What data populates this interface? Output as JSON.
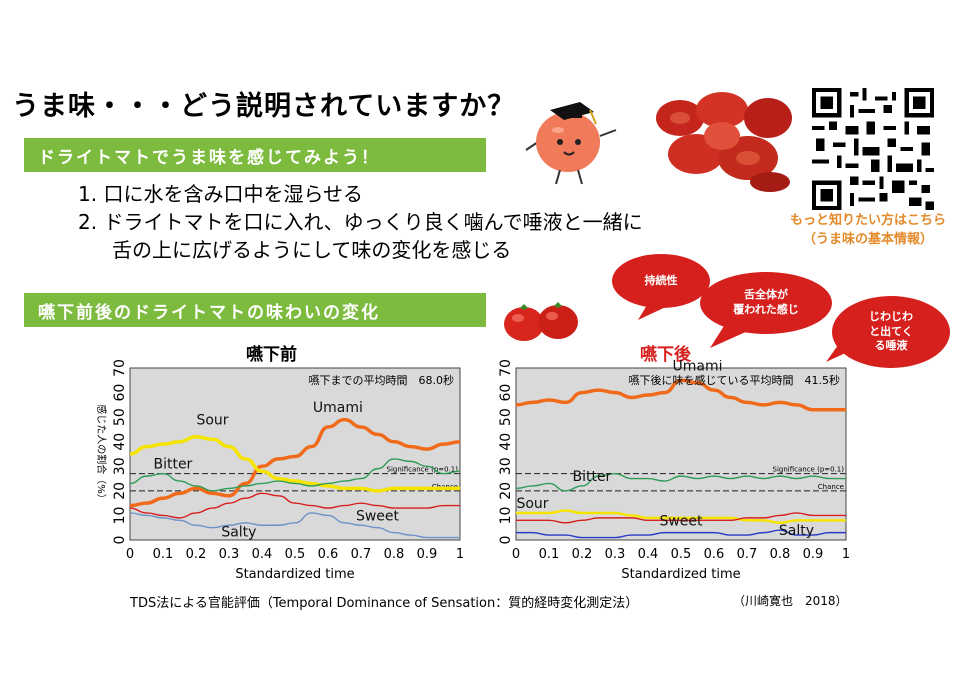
{
  "title": "うま味・・・どう説明されていますか？",
  "section1": {
    "heading": "ドライトマトでうま味を感じてみよう！",
    "step1": "1. 口に水を含み口中を湿らせる",
    "step2_line1": "2. ドライトマトを口に入れ、ゆっくり良く噛んで唾液と一緒に",
    "step2_line2": "舌の上に広げるようにして味の変化を感じる"
  },
  "qr": {
    "caption_line1": "もっと知りたい方はこちら",
    "caption_line2": "（うま味の基本情報）"
  },
  "section2": {
    "heading": "嚥下前後のドライトマトの味わいの変化"
  },
  "bubbles": {
    "b1": "持続性",
    "b2_line1": "舌全体が",
    "b2_line2": "覆われた感じ",
    "b3_line1": "じわじわ",
    "b3_line2": "と出てく",
    "b3_line3": "る唾液"
  },
  "colors": {
    "accent_green": "#7dbb3e",
    "bubble_red": "#d6201e",
    "caption_orange": "#e38a2a"
  },
  "chart_data": [
    {
      "type": "line",
      "title": "嚥下前",
      "subtitle": "嚥下までの平均時間　68.0秒",
      "xlabel": "Standardized time",
      "ylabel": "感じた人の割合（%）",
      "xlim": [
        0,
        1
      ],
      "ylim": [
        0,
        70
      ],
      "xticks": [
        "0",
        "0.1",
        "0.2",
        "0.3",
        "0.4",
        "0.5",
        "0.6",
        "0.7",
        "0.8",
        "0.9",
        "1"
      ],
      "yticks": [
        "0",
        "10",
        "20",
        "30",
        "40",
        "50",
        "60",
        "70"
      ],
      "significance_label": "Significance (p=0.1)",
      "significance": 27,
      "chance_label": "Chance",
      "chance": 20,
      "series": [
        {
          "name": "Umami",
          "color": "#f06a1a",
          "x": [
            0,
            0.05,
            0.1,
            0.15,
            0.2,
            0.25,
            0.3,
            0.35,
            0.4,
            0.45,
            0.5,
            0.55,
            0.6,
            0.65,
            0.7,
            0.75,
            0.8,
            0.85,
            0.9,
            0.95,
            1
          ],
          "y": [
            14,
            15,
            17,
            19,
            21,
            19,
            18,
            23,
            30,
            33,
            34,
            38,
            46,
            49,
            46,
            43,
            40,
            38,
            37,
            39,
            40
          ]
        },
        {
          "name": "Sour",
          "color": "#f5e400",
          "x": [
            0,
            0.05,
            0.1,
            0.15,
            0.2,
            0.25,
            0.3,
            0.35,
            0.4,
            0.45,
            0.5,
            0.55,
            0.6,
            0.65,
            0.7,
            0.75,
            0.8,
            0.85,
            0.9,
            0.95,
            1
          ],
          "y": [
            35,
            38,
            39,
            40,
            42,
            41,
            38,
            33,
            28,
            25,
            24,
            23,
            22,
            21,
            21,
            20,
            21,
            21,
            21,
            21,
            21
          ]
        },
        {
          "name": "Bitter",
          "color": "#2e9c55",
          "x": [
            0,
            0.05,
            0.1,
            0.15,
            0.2,
            0.25,
            0.3,
            0.35,
            0.4,
            0.45,
            0.5,
            0.55,
            0.6,
            0.65,
            0.7,
            0.75,
            0.8,
            0.85,
            0.9,
            0.95,
            1
          ],
          "y": [
            23,
            26,
            27,
            24,
            22,
            20,
            21,
            22,
            23,
            24,
            23,
            22,
            23,
            24,
            25,
            29,
            33,
            32,
            30,
            27,
            28
          ]
        },
        {
          "name": "Sweet",
          "color": "#d81e1e",
          "x": [
            0,
            0.05,
            0.1,
            0.15,
            0.2,
            0.25,
            0.3,
            0.35,
            0.4,
            0.45,
            0.5,
            0.55,
            0.6,
            0.65,
            0.7,
            0.75,
            0.8,
            0.85,
            0.9,
            0.95,
            1
          ],
          "y": [
            13,
            11,
            10,
            9,
            11,
            13,
            15,
            17,
            19,
            18,
            15,
            14,
            13,
            14,
            15,
            14,
            13,
            13,
            13,
            14,
            14
          ]
        },
        {
          "name": "Salty",
          "color": "#6c92c8",
          "x": [
            0,
            0.05,
            0.1,
            0.15,
            0.2,
            0.25,
            0.3,
            0.35,
            0.4,
            0.45,
            0.5,
            0.55,
            0.6,
            0.65,
            0.7,
            0.75,
            0.8,
            0.85,
            0.9,
            0.95,
            1
          ],
          "y": [
            11,
            10,
            9,
            8,
            6,
            5,
            6,
            7,
            6,
            6,
            7,
            11,
            10,
            7,
            6,
            5,
            3,
            2,
            1,
            1,
            1
          ]
        }
      ]
    },
    {
      "type": "line",
      "title": "嚥下後",
      "subtitle": "嚥下後に味を感じている平均時間　41.5秒",
      "xlabel": "Standardized time",
      "ylabel": "",
      "xlim": [
        0,
        1
      ],
      "ylim": [
        0,
        70
      ],
      "xticks": [
        "0",
        "0.1",
        "0.2",
        "0.3",
        "0.4",
        "0.5",
        "0.6",
        "0.7",
        "0.8",
        "0.9",
        "1"
      ],
      "yticks": [
        "0",
        "10",
        "20",
        "30",
        "40",
        "50",
        "60",
        "70"
      ],
      "significance_label": "Significance (p=0.1)",
      "significance": 27,
      "chance_label": "Chance",
      "chance": 20,
      "series": [
        {
          "name": "Umami",
          "color": "#f06a1a",
          "x": [
            0,
            0.05,
            0.1,
            0.15,
            0.2,
            0.25,
            0.3,
            0.35,
            0.4,
            0.45,
            0.5,
            0.55,
            0.6,
            0.65,
            0.7,
            0.75,
            0.8,
            0.85,
            0.9,
            0.95,
            1
          ],
          "y": [
            55,
            56,
            57,
            56,
            60,
            61,
            60,
            58,
            59,
            60,
            65,
            64,
            61,
            58,
            56,
            55,
            56,
            55,
            53,
            53,
            53
          ]
        },
        {
          "name": "Bitter",
          "color": "#2e9c55",
          "x": [
            0,
            0.05,
            0.1,
            0.15,
            0.2,
            0.25,
            0.3,
            0.35,
            0.4,
            0.45,
            0.5,
            0.55,
            0.6,
            0.65,
            0.7,
            0.75,
            0.8,
            0.85,
            0.9,
            0.95,
            1
          ],
          "y": [
            21,
            22,
            23,
            20,
            22,
            26,
            27,
            25,
            25,
            24,
            26,
            25,
            26,
            25,
            26,
            25,
            26,
            25,
            26,
            25,
            25
          ]
        },
        {
          "name": "Sour",
          "color": "#f5e400",
          "x": [
            0,
            0.05,
            0.1,
            0.15,
            0.2,
            0.25,
            0.3,
            0.35,
            0.4,
            0.45,
            0.5,
            0.55,
            0.6,
            0.65,
            0.7,
            0.75,
            0.8,
            0.85,
            0.9,
            0.95,
            1
          ],
          "y": [
            11,
            11,
            11,
            12,
            11,
            11,
            11,
            10,
            9,
            9,
            9,
            9,
            9,
            9,
            8,
            8,
            7,
            8,
            8,
            8,
            8
          ]
        },
        {
          "name": "Sweet",
          "color": "#d81e1e",
          "x": [
            0,
            0.05,
            0.1,
            0.15,
            0.2,
            0.25,
            0.3,
            0.35,
            0.4,
            0.45,
            0.5,
            0.55,
            0.6,
            0.65,
            0.7,
            0.75,
            0.8,
            0.85,
            0.9,
            0.95,
            1
          ],
          "y": [
            8,
            8,
            8,
            7,
            8,
            9,
            9,
            9,
            8,
            8,
            8,
            8,
            8,
            8,
            9,
            9,
            10,
            11,
            10,
            10,
            10
          ]
        },
        {
          "name": "Salty",
          "color": "#2a3cc8",
          "x": [
            0,
            0.05,
            0.1,
            0.15,
            0.2,
            0.25,
            0.3,
            0.35,
            0.4,
            0.45,
            0.5,
            0.55,
            0.6,
            0.65,
            0.7,
            0.75,
            0.8,
            0.85,
            0.9,
            0.95,
            1
          ],
          "y": [
            3,
            3,
            2,
            2,
            1,
            1,
            1,
            2,
            2,
            3,
            3,
            3,
            3,
            2,
            2,
            3,
            4,
            2,
            2,
            3,
            3
          ]
        }
      ],
      "label_positions_note": ""
    }
  ],
  "footer": {
    "caption": "TDS法による官能評価（Temporal Dominance of Sensation：質的経時変化測定法）",
    "reference": "（川崎寛也　2018）"
  }
}
